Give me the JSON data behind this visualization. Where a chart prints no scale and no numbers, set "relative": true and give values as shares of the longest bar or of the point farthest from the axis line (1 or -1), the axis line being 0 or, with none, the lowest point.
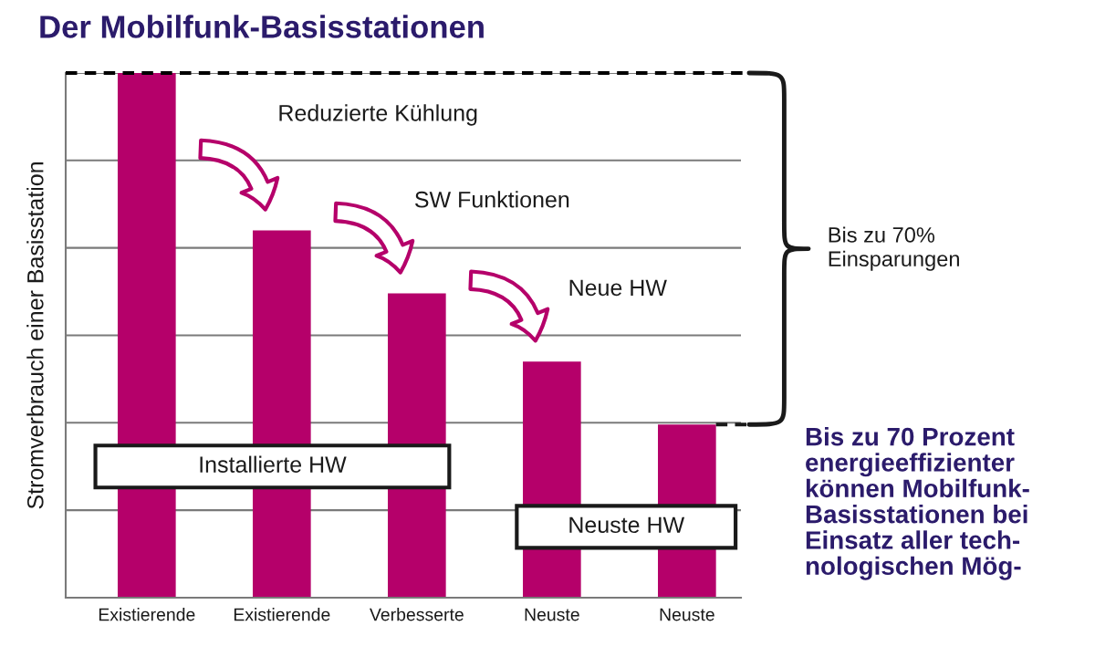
{
  "chart_data": {
    "type": "bar",
    "title": "Der Mobilfunk-Basisstationen",
    "ylabel": "Stromverbrauch einer Basisstation",
    "categories": [
      "Existierende",
      "Existierende",
      "Verbesserte",
      "Neuste",
      "Neuste"
    ],
    "values": [
      1,
      0.7,
      0.58,
      0.45,
      0.33
    ],
    "color": "#b5006a",
    "relative": true,
    "grid": "y",
    "tick_labels": "x",
    "ref_lines": [
      {
        "axis": "y",
        "value": 1,
        "line_style": "dashed",
        "color": "#000000"
      }
    ],
    "annotations": [
      "Reduzierte Kühlung",
      "SW Funktionen",
      "Neue HW",
      "Bis zu 70%\nEinsparungen",
      "Installierte HW",
      "Neuste HW",
      "Bis zu 70 Prozent\nenergieeffizienter\nkönnen Mobilfunk-\nBasisstationen bei\nEinsatz aller tech-\nnologischen Mög-"
    ]
  }
}
